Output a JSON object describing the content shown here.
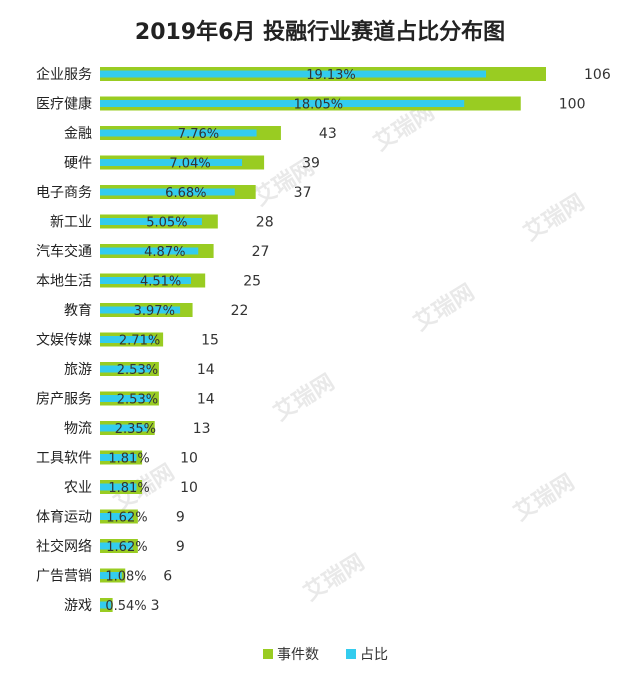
{
  "watermark_text": "艾瑞网",
  "chart_data": {
    "type": "bar",
    "title": "2019年6月 投融行业赛道占比分布图",
    "categories": [
      "企业服务",
      "医疗健康",
      "金融",
      "硬件",
      "电子商务",
      "新工业",
      "汽车交通",
      "本地生活",
      "教育",
      "文娱传媒",
      "旅游",
      "房产服务",
      "物流",
      "工具软件",
      "农业",
      "体育运动",
      "社交网络",
      "广告营销",
      "游戏"
    ],
    "series": [
      {
        "name": "事件数",
        "color": "#99cc22",
        "values": [
          106,
          100,
          43,
          39,
          37,
          28,
          27,
          25,
          22,
          15,
          14,
          14,
          13,
          10,
          10,
          9,
          9,
          6,
          3
        ],
        "labels": [
          "106",
          "100",
          "43",
          "39",
          "37",
          "28",
          "27",
          "25",
          "22",
          "15",
          "14",
          "14",
          "13",
          "10",
          "10",
          "9",
          "9",
          "6",
          "3"
        ]
      },
      {
        "name": "占比",
        "color": "#33ccee",
        "values": [
          19.13,
          18.05,
          7.76,
          7.04,
          6.68,
          5.05,
          4.87,
          4.51,
          3.97,
          2.71,
          2.53,
          2.53,
          2.35,
          1.81,
          1.81,
          1.62,
          1.62,
          1.08,
          0.54
        ],
        "labels": [
          "19.13%",
          "18.05%",
          "7.76%",
          "7.04%",
          "6.68%",
          "5.05%",
          "4.87%",
          "4.51%",
          "3.97%",
          "2.71%",
          "2.53%",
          "2.53%",
          "2.35%",
          "1.81%",
          "1.81%",
          "1.62%",
          "1.62%",
          "1.08%",
          "0.54%"
        ]
      }
    ],
    "xlabel": "",
    "ylabel": "",
    "grid": false,
    "legend_position": "bottom"
  }
}
